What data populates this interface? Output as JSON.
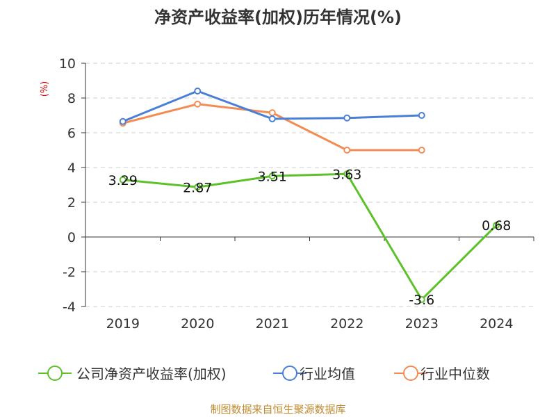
{
  "chart_data": {
    "type": "line",
    "title": "净资产收益率(加权)历年情况(%)",
    "ylabel": "(%)",
    "categories": [
      "2019",
      "2020",
      "2021",
      "2022",
      "2023",
      "2024"
    ],
    "ylim": [
      -4,
      10
    ],
    "yticks": [
      -4,
      -2,
      0,
      2,
      4,
      6,
      8,
      10
    ],
    "ytick_labels": [
      "-4",
      "-2",
      "0",
      "2",
      "4",
      "6",
      "8",
      "10"
    ],
    "grid": true,
    "legend_position": "bottom",
    "series": [
      {
        "name": "公司净资产收益率(加权)",
        "color": "#5cc12a",
        "values": [
          3.29,
          2.87,
          3.51,
          3.63,
          -3.6,
          0.68
        ],
        "labels": [
          "3.29",
          "2.87",
          "3.51",
          "3.63",
          "-3.6",
          "0.68"
        ]
      },
      {
        "name": "行业均值",
        "color": "#4a7fd8",
        "values": [
          6.65,
          8.4,
          6.8,
          6.85,
          7.0,
          null
        ]
      },
      {
        "name": "行业中位数",
        "color": "#f28c55",
        "values": [
          6.55,
          7.65,
          7.15,
          5.0,
          5.0,
          null
        ]
      }
    ]
  },
  "source": "制图数据来自恒生聚源数据库"
}
